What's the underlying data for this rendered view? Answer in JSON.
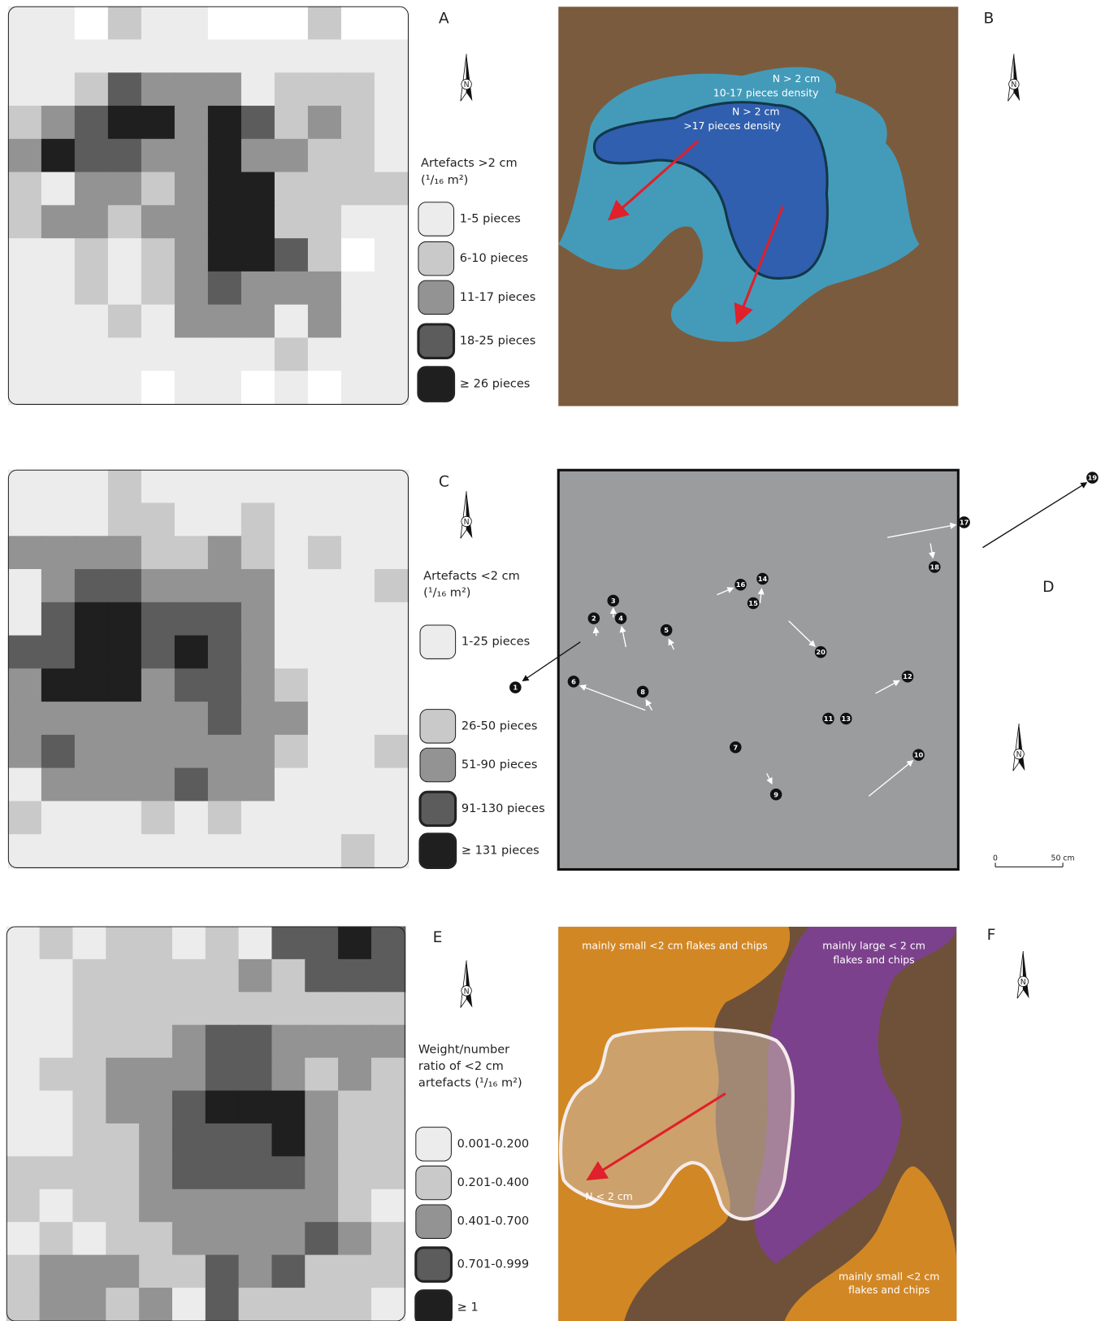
{
  "north_symbol": "N",
  "panel_a": {
    "label": "A",
    "legend_title": "Artefacts >2 cm",
    "legend_unit": "(¹/₁₆ m²)",
    "legend_items": [
      "1-5 pieces",
      "6-10 pieces",
      "11-17 pieces",
      "18-25 pieces",
      "≥ 26 pieces"
    ]
  },
  "panel_b": {
    "label": "B",
    "annotations": [
      "N > 2 cm",
      "10-17 pieces density",
      "N > 2 cm",
      ">17 pieces density"
    ]
  },
  "panel_c": {
    "label": "C",
    "legend_title": "Artefacts <2 cm",
    "legend_unit": "(¹/₁₆ m²)",
    "legend_items": [
      "1-25 pieces",
      "26-50 pieces",
      "51-90 pieces",
      "91-130 pieces",
      "≥ 131 pieces"
    ]
  },
  "panel_d": {
    "label": "D",
    "points": [
      "1",
      "2",
      "3",
      "4",
      "5",
      "6",
      "7",
      "8",
      "9",
      "10",
      "11",
      "12",
      "13",
      "14",
      "15",
      "16",
      "17",
      "18",
      "19",
      "20"
    ],
    "scale_start": "0",
    "scale_end": "50 cm"
  },
  "panel_e": {
    "label": "E",
    "legend_title_lines": [
      "Weight/number",
      "ratio of <2 cm",
      "artefacts (¹/₁₆ m²)"
    ],
    "legend_items": [
      "0.001-0.200",
      "0.201-0.400",
      "0.401-0.700",
      "0.701-0.999",
      "≥ 1"
    ]
  },
  "panel_f": {
    "label": "F",
    "annotations": [
      "mainly small <2 cm flakes and chips",
      "mainly large < 2 cm",
      "flakes and chips",
      "N < 2 cm",
      "mainly small <2 cm",
      "flakes and chips"
    ]
  }
}
